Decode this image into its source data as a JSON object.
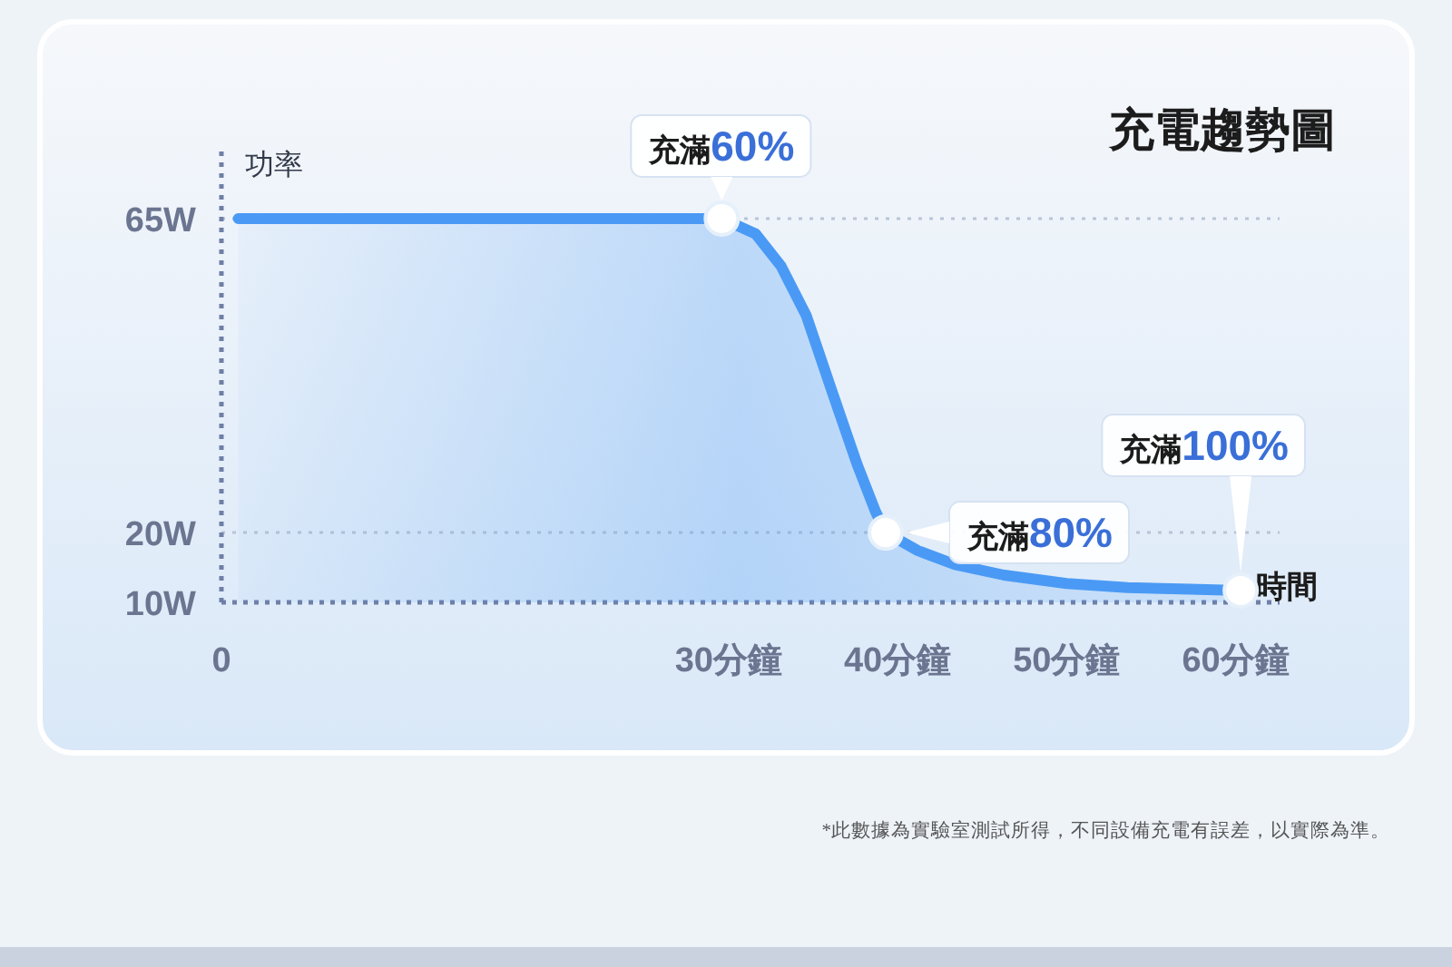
{
  "chart_data": {
    "type": "area",
    "title": "充電趨勢圖",
    "ylabel": "功率",
    "xlabel": "時間",
    "series": [
      {
        "color": "#4a9af5",
        "x": [
          1,
          29.6,
          31.6,
          33.1,
          34.6,
          36.1,
          37.6,
          38.7,
          39.3,
          41.2,
          43.4,
          46.3,
          50.0,
          53.6,
          57.3,
          60.3
        ],
        "values": [
          65,
          65,
          62.8,
          58.2,
          51.1,
          40.4,
          29.8,
          23.0,
          20,
          17.4,
          15.4,
          13.9,
          12.7,
          12.1,
          11.9,
          11.7
        ]
      }
    ],
    "xlim": [
      0,
      62.6
    ],
    "xticks": [
      0,
      {
        "value": 30,
        "label": "30分鐘"
      },
      {
        "value": 40,
        "label": "40分鐘"
      },
      {
        "value": 50,
        "label": "50分鐘"
      },
      {
        "value": 60,
        "label": "60分鐘"
      }
    ],
    "ylim": [
      10,
      75
    ],
    "yticks": [
      {
        "value": 10,
        "label": "10W"
      },
      {
        "value": 20,
        "label": "20W"
      },
      {
        "value": 65,
        "label": "65W"
      }
    ],
    "grid": "y",
    "marker": "none",
    "line_style": "solid",
    "annotations": [
      {
        "text": "充滿60%",
        "x": 29.6,
        "y": 65
      },
      {
        "text": "充滿80%",
        "x": 39.3,
        "y": 20
      },
      {
        "text": "充滿100%",
        "x": 60.3,
        "y": 11.7
      },
      "*此數據為實驗室測試所得，不同設備充電有誤差，以實際為準。"
    ]
  }
}
